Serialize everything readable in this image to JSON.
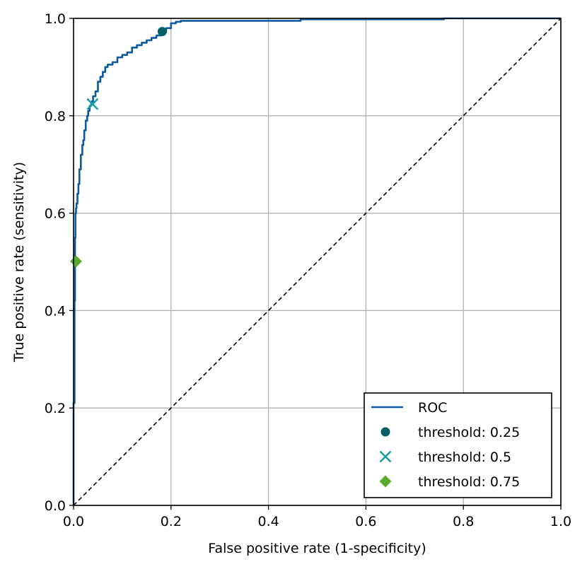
{
  "chart_data": {
    "type": "line",
    "title": "",
    "xlabel": "False positive rate (1-specificity)",
    "ylabel": "True positive rate (sensitivity)",
    "xlim": [
      0.0,
      1.0
    ],
    "ylim": [
      0.0,
      1.0
    ],
    "xticks": [
      "0.0",
      "0.2",
      "0.4",
      "0.6",
      "0.8",
      "1.0"
    ],
    "yticks": [
      "0.0",
      "0.2",
      "0.4",
      "0.6",
      "0.8",
      "1.0"
    ],
    "grid": true,
    "legend_position": "bottom-right",
    "series": [
      {
        "name": "ROC",
        "kind": "line",
        "color": "#0b5aa2",
        "x": [
          0.0,
          0.0,
          0.002,
          0.002,
          0.003,
          0.003,
          0.004,
          0.004,
          0.005,
          0.006,
          0.008,
          0.01,
          0.012,
          0.015,
          0.018,
          0.02,
          0.022,
          0.025,
          0.028,
          0.03,
          0.033,
          0.036,
          0.038,
          0.04,
          0.045,
          0.05,
          0.055,
          0.06,
          0.065,
          0.07,
          0.08,
          0.09,
          0.1,
          0.11,
          0.12,
          0.13,
          0.14,
          0.15,
          0.16,
          0.17,
          0.18,
          0.19,
          0.2,
          0.21,
          0.22,
          0.3,
          0.466,
          0.466,
          0.76,
          0.76,
          1.0
        ],
        "y": [
          0.0,
          0.21,
          0.29,
          0.42,
          0.5,
          0.55,
          0.58,
          0.6,
          0.61,
          0.62,
          0.64,
          0.66,
          0.69,
          0.72,
          0.74,
          0.75,
          0.77,
          0.79,
          0.8,
          0.81,
          0.82,
          0.824,
          0.83,
          0.84,
          0.85,
          0.87,
          0.88,
          0.89,
          0.9,
          0.905,
          0.91,
          0.92,
          0.925,
          0.93,
          0.94,
          0.945,
          0.95,
          0.955,
          0.96,
          0.965,
          0.972,
          0.98,
          0.99,
          0.993,
          0.995,
          0.995,
          0.996,
          0.998,
          0.998,
          1.0,
          1.0
        ]
      },
      {
        "name": "threshold: 0.25",
        "kind": "marker",
        "marker": "circle",
        "color": "#006066",
        "x": [
          0.182
        ],
        "y": [
          0.973
        ]
      },
      {
        "name": "threshold: 0.5",
        "kind": "marker",
        "marker": "x",
        "color": "#1a9ba8",
        "x": [
          0.039
        ],
        "y": [
          0.824
        ]
      },
      {
        "name": "threshold: 0.75",
        "kind": "marker",
        "marker": "diamond",
        "color": "#5aaa2e",
        "x": [
          0.005
        ],
        "y": [
          0.501
        ]
      }
    ],
    "reference_line": {
      "style": "dashed",
      "color": "#000000",
      "x": [
        0.0,
        1.0
      ],
      "y": [
        0.0,
        1.0
      ]
    }
  }
}
